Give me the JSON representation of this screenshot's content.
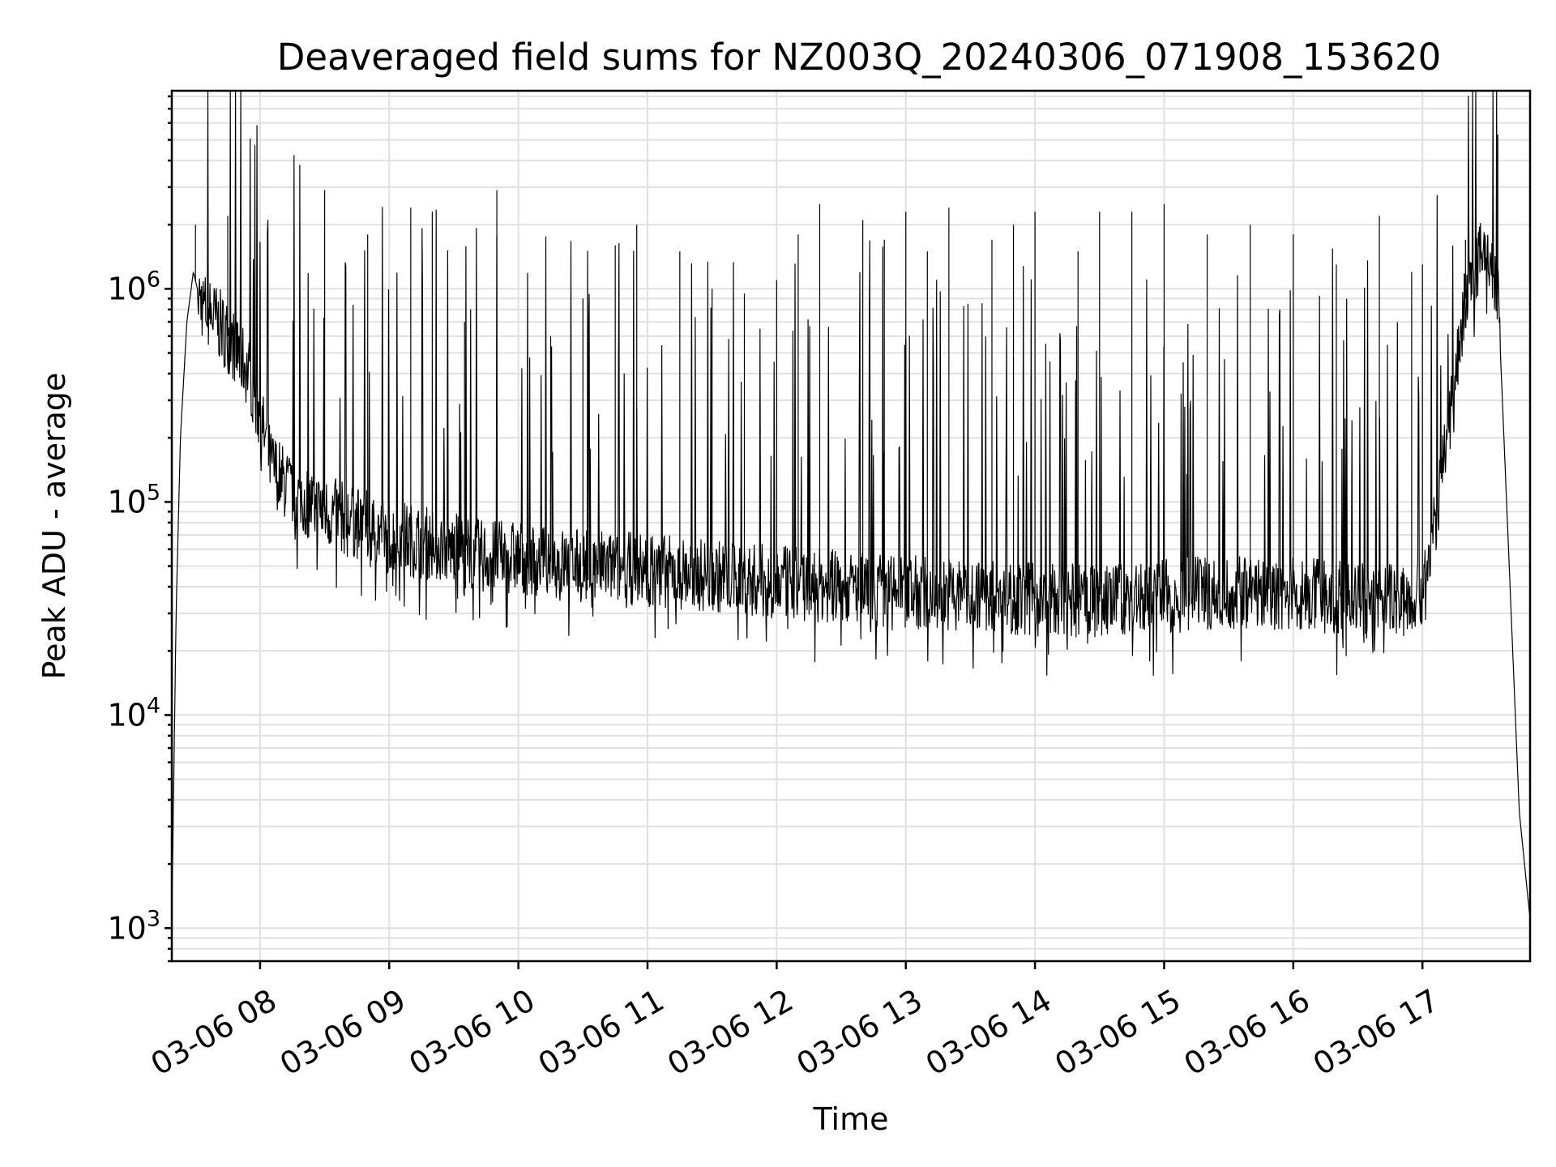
{
  "chart_data": {
    "type": "line",
    "title": "Deaveraged field sums for NZ003Q_20240306_071908_153620",
    "xlabel": "Time",
    "ylabel": "Peak ADU - average",
    "yscale": "log",
    "ylim": [
      700,
      8500000
    ],
    "xlim": [
      "2024-03-06 07:19",
      "2024-03-06 17:50"
    ],
    "grid": true,
    "line_color": "#000000",
    "x_ticks": [
      {
        "value": "2024-03-06 08:00",
        "label": "03-06 08"
      },
      {
        "value": "2024-03-06 09:00",
        "label": "03-06 09"
      },
      {
        "value": "2024-03-06 10:00",
        "label": "03-06 10"
      },
      {
        "value": "2024-03-06 11:00",
        "label": "03-06 11"
      },
      {
        "value": "2024-03-06 12:00",
        "label": "03-06 12"
      },
      {
        "value": "2024-03-06 13:00",
        "label": "03-06 13"
      },
      {
        "value": "2024-03-06 14:00",
        "label": "03-06 14"
      },
      {
        "value": "2024-03-06 15:00",
        "label": "03-06 15"
      },
      {
        "value": "2024-03-06 16:00",
        "label": "03-06 16"
      },
      {
        "value": "2024-03-06 17:00",
        "label": "03-06 17"
      }
    ],
    "y_ticks": [
      {
        "value": 1000,
        "base": "10",
        "exp": "3"
      },
      {
        "value": 10000,
        "base": "10",
        "exp": "4"
      },
      {
        "value": 100000,
        "base": "10",
        "exp": "5"
      },
      {
        "value": 1000000,
        "base": "10",
        "exp": "6"
      }
    ],
    "series": [
      {
        "x": [
          "2024-03-06 07:19",
          "2024-03-06 07:21",
          "2024-03-06 07:23",
          "2024-03-06 07:26",
          "2024-03-06 07:29",
          "2024-03-06 07:32",
          "2024-03-06 07:35",
          "2024-03-06 07:40",
          "2024-03-06 07:45",
          "2024-03-06 07:50",
          "2024-03-06 07:55",
          "2024-03-06 08:00",
          "2024-03-06 08:05",
          "2024-03-06 08:15",
          "2024-03-06 08:30",
          "2024-03-06 08:45",
          "2024-03-06 09:00",
          "2024-03-06 09:15",
          "2024-03-06 09:30",
          "2024-03-06 09:45",
          "2024-03-06 10:00",
          "2024-03-06 10:30",
          "2024-03-06 11:00",
          "2024-03-06 11:30",
          "2024-03-06 12:00",
          "2024-03-06 12:30",
          "2024-03-06 13:00",
          "2024-03-06 13:30",
          "2024-03-06 14:00",
          "2024-03-06 14:30",
          "2024-03-06 15:00",
          "2024-03-06 15:30",
          "2024-03-06 16:00",
          "2024-03-06 16:30",
          "2024-03-06 16:55",
          "2024-03-06 17:00",
          "2024-03-06 17:05",
          "2024-03-06 17:10",
          "2024-03-06 17:15",
          "2024-03-06 17:20",
          "2024-03-06 17:25",
          "2024-03-06 17:30",
          "2024-03-06 17:35",
          "2024-03-06 17:40",
          "2024-03-06 17:45",
          "2024-03-06 17:50"
        ],
        "values": [
          1100,
          30000,
          200000,
          700000,
          1200000,
          900000,
          800000,
          700000,
          600000,
          500000,
          400000,
          250000,
          150000,
          110000,
          90000,
          80000,
          70000,
          65000,
          60000,
          55000,
          55000,
          50000,
          48000,
          45000,
          42000,
          40000,
          38000,
          37000,
          35000,
          34000,
          36000,
          38000,
          37000,
          35000,
          35000,
          40000,
          70000,
          150000,
          400000,
          900000,
          1300000,
          1500000,
          1000000,
          60000,
          3500,
          1100
        ],
        "spikes": [
          [
            "2024-03-06 07:30",
            2000000
          ],
          [
            "2024-03-06 07:45",
            2200000
          ],
          [
            "2024-03-06 08:30",
            2900000
          ],
          [
            "2024-03-06 08:50",
            1800000
          ],
          [
            "2024-03-06 09:10",
            2400000
          ],
          [
            "2024-03-06 09:20",
            2300000
          ],
          [
            "2024-03-06 09:35",
            700000
          ],
          [
            "2024-03-06 09:50",
            2900000
          ],
          [
            "2024-03-06 10:15",
            600000
          ],
          [
            "2024-03-06 10:30",
            900000
          ],
          [
            "2024-03-06 10:45",
            1600000
          ],
          [
            "2024-03-06 10:55",
            2000000
          ],
          [
            "2024-03-06 11:15",
            1500000
          ],
          [
            "2024-03-06 11:30",
            1000000
          ],
          [
            "2024-03-06 11:45",
            950000
          ],
          [
            "2024-03-06 12:00",
            1100000
          ],
          [
            "2024-03-06 12:10",
            1800000
          ],
          [
            "2024-03-06 12:20",
            2500000
          ],
          [
            "2024-03-06 12:40",
            2100000
          ],
          [
            "2024-03-06 12:50",
            1700000
          ],
          [
            "2024-03-06 13:00",
            2300000
          ],
          [
            "2024-03-06 13:10",
            1500000
          ],
          [
            "2024-03-06 13:20",
            2400000
          ],
          [
            "2024-03-06 13:40",
            1700000
          ],
          [
            "2024-03-06 13:50",
            2000000
          ],
          [
            "2024-03-06 14:00",
            2300000
          ],
          [
            "2024-03-06 14:20",
            1500000
          ],
          [
            "2024-03-06 14:30",
            2300000
          ],
          [
            "2024-03-06 14:45",
            2300000
          ],
          [
            "2024-03-06 15:00",
            2500000
          ],
          [
            "2024-03-06 15:20",
            1800000
          ],
          [
            "2024-03-06 15:40",
            2000000
          ],
          [
            "2024-03-06 16:00",
            1800000
          ],
          [
            "2024-03-06 16:20",
            1300000
          ],
          [
            "2024-03-06 16:40",
            2200000
          ],
          [
            "2024-03-06 16:55",
            1200000
          ],
          [
            "2024-03-06 17:00",
            1300000
          ],
          [
            "2024-03-06 17:20",
            1700000
          ],
          [
            "2024-03-06 17:35",
            5300000
          ]
        ]
      }
    ]
  }
}
